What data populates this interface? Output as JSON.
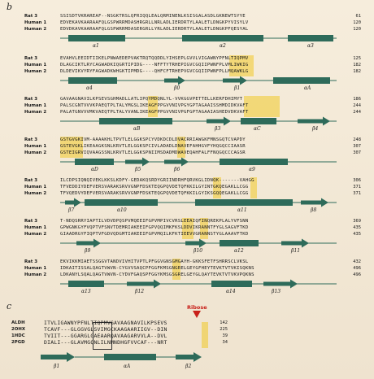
{
  "panel_b_label": "b",
  "panel_c_label": "c",
  "blocks": [
    {
      "rows": [
        {
          "name": "Rat 3",
          "seq": "SSISDTVKRAREAF--NSGKTRSLQFRIQQLEALQRMINENLKSISGALASDLGKNEWTSYYE",
          "num": "61"
        },
        {
          "name": "Human 1",
          "seq": "EDVEKAVKAARAAFQLGSPWRRMDASHRGRLLNRLADLIERDRTYLAALETLDNGKPYVISYLV",
          "num": "120"
        },
        {
          "name": "Human 2",
          "seq": "EDVDKAVKAARAAFQLGSPWRRMDASERGRLLYRLADLIERDRTYLAALETLDNGKPFQESYAL",
          "num": "120"
        }
      ],
      "labels": [
        "α1",
        "α2",
        "α3"
      ]
    },
    {
      "rows": [
        {
          "name": "Rat 3",
          "seq": "EVAHVLEEIDTIIKELPNWAEDEPVAKTRQTQQDDLYIHSEPLGVVLVIGAWNYPFNLTIQPMV",
          "num": "125"
        },
        {
          "name": "Human 1",
          "seq": "DLAGCIKTLRYCAGWADKIQGRTIPIDG----NFFTYTRHEPIGVCGQIIPWNFPLVMLIWKIG",
          "num": "182"
        },
        {
          "name": "Human 2",
          "seq": "DLDEVIKVYRYFAGWADKWHGKTIPMDG----QHFCFTRHEPVGVCGQIIPWNFPLLMQAWKLG",
          "num": "182"
        }
      ],
      "labels": [
        "α4",
        "β0",
        "β1",
        "αA"
      ]
    },
    {
      "rows": [
        {
          "name": "Rat 3",
          "seq": "GAVAAGNAVILKPSEVSGHMADLLATLIPQYMDQNLYL-VVKGGVPETTELLKERFDHIMYT",
          "num": "186"
        },
        {
          "name": "Human 1",
          "seq": "PALSCGNTVVVKPAEQTPLTALYMGSLIKEAGFPPGVVNIVPGYGPTAGAAISSHMDIDKVAFT",
          "num": "244"
        },
        {
          "name": "Human 2",
          "seq": "PALATGNVVVMKVAEQTPLTALYVANLIKEAGFPPGVVNIVPGFGPTAGAAIASHEDVDKVAFT",
          "num": "244"
        }
      ],
      "labels": [
        "αB",
        "β3",
        "αC",
        "β4"
      ]
    },
    {
      "rows": [
        {
          "name": "Rat 3",
          "seq": "GSTGVGKIVM-AAAAKHLTPVTLELGGKSPCYVDKDCDLDVACRRIAWGKFMNSGQTCVAPDY",
          "num": "248"
        },
        {
          "name": "Human 1",
          "seq": "GSTEVGKLIKEAAGKSNLKRVTLELGGKSPCIVLADADLDNAVEFAHHGVFYHQGQCCIAASR",
          "num": "307"
        },
        {
          "name": "Human 2",
          "seq": "GSTEIGRVIQVAAGSSNLKRVTLELGGKSPNIIMSDADMDWAVEQAHFALFFNQGQCCCAGSR",
          "num": "307"
        }
      ],
      "labels": [
        "αD",
        "β5",
        "β6",
        "α9"
      ]
    },
    {
      "rows": [
        {
          "name": "Rat 3",
          "seq": "ILCDPSIQNQIVEKLKKSLKDFY-GEDAKQSRDYGRIINDRHFQRVKGLIDNQK-------VAHGG",
          "num": "306"
        },
        {
          "name": "Human 1",
          "seq": "TFVEDDIYDEFVERSVARAKSRVVGNPFDSKTEQGPQVDETQFKKILGYINTGKQEGAKLLCGG",
          "num": "371"
        },
        {
          "name": "Human 2",
          "seq": "TFVQEDVYDEFVERSVARAKSRVVGNPFDSKTEQGPQVDETQFKKILGYIKSGQQEGAKLLCGG",
          "num": "371"
        }
      ],
      "labels": [
        "β7",
        "α10",
        "α11",
        "β8"
      ]
    },
    {
      "rows": [
        {
          "name": "Rat 3",
          "seq": "T-NDQSRRYIAPTILVDVDPQSPVMQEEIFGPVMPIVCVRSLEEAIQFINQREKPLALYVFSNN",
          "num": "369"
        },
        {
          "name": "Human 1",
          "seq": "GPWGNKGYFVQPTVFSNVTDEMRIAKEEIFGPVQQIMKFKSLDDVIKRANNTFYGLSAGVFTKD",
          "num": "435"
        },
        {
          "name": "Human 2",
          "seq": "GIAADRGYFIQPTVFGDVQDGMTIAKEEIFGPVMQILKFKTIEEVVGRANNSTYGLAAAVFTKD",
          "num": "435"
        }
      ],
      "labels": [
        "β9",
        "β10",
        "α12",
        "β11"
      ]
    },
    {
      "rows": [
        {
          "name": "Rat 3",
          "seq": "EKVIKKMIAETSSGGVTANDVIVHITVPTLPFGGVGNSGMGAYH-GKKSFETFSHRRSCLVKSL",
          "num": "432"
        },
        {
          "name": "Human 1",
          "seq": "IDKAITISSALQAGTVWVN-CYGVVSAQCPFGGFKMSGNGRELGEYGFHEYTEVKTVTVKISQKNS",
          "num": "496"
        },
        {
          "name": "Human 2",
          "seq": "LDKANYLSQALQAGTVWVN-CYDVFGAQSPFGGYKMSGSGRELGEYGLQAYTEVKTVTVKVPQKNS",
          "num": "496"
        }
      ],
      "labels": [
        "α13",
        "β12",
        "α14",
        "β13"
      ]
    }
  ],
  "panel_c": {
    "ribose_label": "Ribose",
    "rows": [
      {
        "name": "ALDH",
        "seq": "ITVLIGAWNYPFNLTIQPMVGAVAAGNAVILKPSEVS",
        "num": "142"
      },
      {
        "name": "2OHX",
        "seq": "TCAVF---GLGGVGLSVIMGCKAAGAARIIGV--DIN",
        "num": "225"
      },
      {
        "name": "1HDC",
        "seq": "TVIIT---GGARGLGAEAARQAVAAGARVVLA--DVL",
        "num": "39"
      },
      {
        "name": "2PGD",
        "seq": "DIALI---GLAVMGQNLILNMNDHGFVVCAF---NRT",
        "num": "34"
      }
    ],
    "labels": [
      "β1",
      "αA",
      "β2"
    ]
  },
  "colors": {
    "helix": "#2e6b5a",
    "strand": "#2e6b5a",
    "highlight": "#f0c828",
    "accent_red": "#c8201a",
    "background": "#f3e9d8"
  }
}
